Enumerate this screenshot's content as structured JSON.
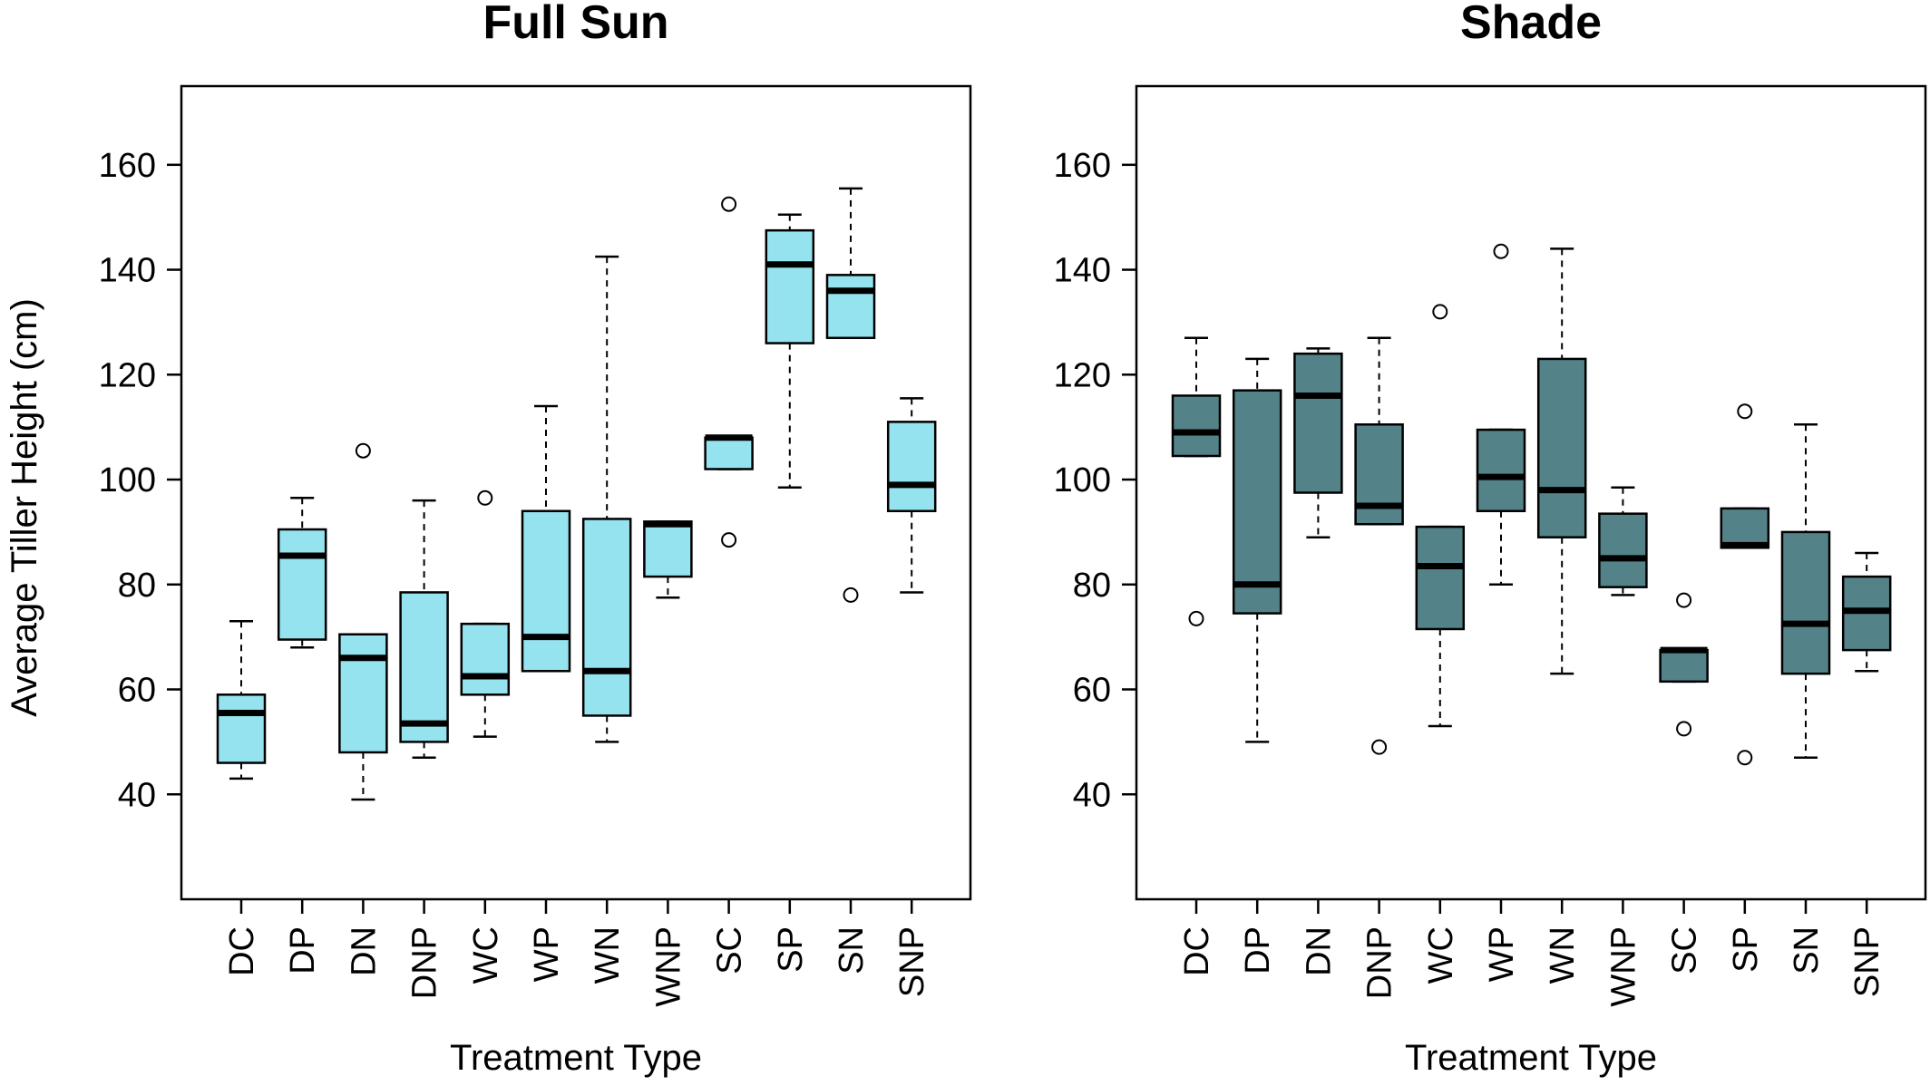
{
  "chart_data": [
    {
      "type": "box",
      "title": "Full Sun",
      "xlabel": "Treatment Type",
      "ylabel": "Average Tiller Height (cm)",
      "ylim": [
        20,
        175
      ],
      "yticks": [
        40,
        60,
        80,
        100,
        120,
        140,
        160
      ],
      "fill": "#95E3EE",
      "categories": [
        "DC",
        "DP",
        "DN",
        "DNP",
        "WC",
        "WP",
        "WN",
        "WNP",
        "SC",
        "SP",
        "SN",
        "SNP"
      ],
      "boxes": [
        {
          "low": 43,
          "q1": 46,
          "median": 55.5,
          "q3": 59,
          "high": 73,
          "outliers": []
        },
        {
          "low": 68,
          "q1": 69.5,
          "median": 85.5,
          "q3": 90.5,
          "high": 96.5,
          "outliers": []
        },
        {
          "low": 39,
          "q1": 48,
          "median": 66,
          "q3": 70.5,
          "high": 70.5,
          "outliers": [
            105.5
          ]
        },
        {
          "low": 47,
          "q1": 50,
          "median": 53.5,
          "q3": 78.5,
          "high": 96,
          "outliers": []
        },
        {
          "low": 51,
          "q1": 59,
          "median": 62.5,
          "q3": 72.5,
          "high": 72.5,
          "outliers": [
            96.5
          ]
        },
        {
          "low": 63.5,
          "q1": 63.5,
          "median": 70,
          "q3": 94,
          "high": 114,
          "outliers": []
        },
        {
          "low": 50,
          "q1": 55,
          "median": 63.5,
          "q3": 92.5,
          "high": 142.5,
          "outliers": []
        },
        {
          "low": 77.5,
          "q1": 81.5,
          "median": 91.5,
          "q3": 92,
          "high": 92,
          "outliers": []
        },
        {
          "low": 102,
          "q1": 102,
          "median": 108,
          "q3": 108,
          "high": 108,
          "outliers": [
            152.5,
            88.5
          ]
        },
        {
          "low": 98.5,
          "q1": 126,
          "median": 141,
          "q3": 147.5,
          "high": 150.5,
          "outliers": []
        },
        {
          "low": 127,
          "q1": 127,
          "median": 136,
          "q3": 139,
          "high": 155.5,
          "outliers": [
            78
          ]
        },
        {
          "low": 78.5,
          "q1": 94,
          "median": 99,
          "q3": 111,
          "high": 115.5,
          "outliers": []
        }
      ]
    },
    {
      "type": "box",
      "title": "Shade",
      "xlabel": "Treatment Type",
      "ylabel": "",
      "ylim": [
        20,
        175
      ],
      "yticks": [
        40,
        60,
        80,
        100,
        120,
        140,
        160
      ],
      "fill": "#538388",
      "categories": [
        "DC",
        "DP",
        "DN",
        "DNP",
        "WC",
        "WP",
        "WN",
        "WNP",
        "SC",
        "SP",
        "SN",
        "SNP"
      ],
      "boxes": [
        {
          "low": 104.5,
          "q1": 104.5,
          "median": 109,
          "q3": 116,
          "high": 127,
          "outliers": [
            73.5
          ]
        },
        {
          "low": 50,
          "q1": 74.5,
          "median": 80,
          "q3": 117,
          "high": 123,
          "outliers": []
        },
        {
          "low": 89,
          "q1": 97.5,
          "median": 116,
          "q3": 124,
          "high": 125,
          "outliers": []
        },
        {
          "low": 91.5,
          "q1": 91.5,
          "median": 95,
          "q3": 110.5,
          "high": 127,
          "outliers": [
            49
          ]
        },
        {
          "low": 53,
          "q1": 71.5,
          "median": 83.5,
          "q3": 91,
          "high": 91,
          "outliers": [
            132
          ]
        },
        {
          "low": 80,
          "q1": 94,
          "median": 100.5,
          "q3": 109.5,
          "high": 109.5,
          "outliers": [
            143.5
          ]
        },
        {
          "low": 63,
          "q1": 89,
          "median": 98,
          "q3": 123,
          "high": 144,
          "outliers": []
        },
        {
          "low": 78,
          "q1": 79.5,
          "median": 85,
          "q3": 93.5,
          "high": 98.5,
          "outliers": []
        },
        {
          "low": 61.5,
          "q1": 61.5,
          "median": 67.5,
          "q3": 67.5,
          "high": 67.5,
          "outliers": [
            77,
            52.5
          ]
        },
        {
          "low": 87,
          "q1": 87,
          "median": 87.5,
          "q3": 94.5,
          "high": 94.5,
          "outliers": [
            113,
            47
          ]
        },
        {
          "low": 47,
          "q1": 63,
          "median": 72.5,
          "q3": 90,
          "high": 110.5,
          "outliers": []
        },
        {
          "low": 63.5,
          "q1": 67.5,
          "median": 75,
          "q3": 81.5,
          "high": 86,
          "outliers": []
        }
      ]
    }
  ]
}
